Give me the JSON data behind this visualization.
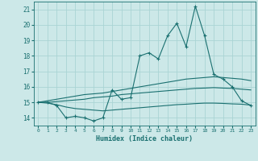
{
  "x": [
    0,
    1,
    2,
    3,
    4,
    5,
    6,
    7,
    8,
    9,
    10,
    11,
    12,
    13,
    14,
    15,
    16,
    17,
    18,
    19,
    20,
    21,
    22,
    23
  ],
  "line_main": [
    15.0,
    15.0,
    14.8,
    14.0,
    14.1,
    14.0,
    13.8,
    14.0,
    15.8,
    15.2,
    15.3,
    18.0,
    18.2,
    17.8,
    19.3,
    20.1,
    18.6,
    21.2,
    19.3,
    16.8,
    16.5,
    16.0,
    15.1,
    14.8
  ],
  "line_upper": [
    15.0,
    15.1,
    15.2,
    15.3,
    15.4,
    15.5,
    15.55,
    15.6,
    15.7,
    15.8,
    15.9,
    16.0,
    16.1,
    16.2,
    16.3,
    16.4,
    16.5,
    16.55,
    16.6,
    16.65,
    16.6,
    16.55,
    16.5,
    16.4
  ],
  "line_mid": [
    15.0,
    15.0,
    15.05,
    15.1,
    15.15,
    15.2,
    15.3,
    15.35,
    15.4,
    15.5,
    15.55,
    15.6,
    15.65,
    15.7,
    15.75,
    15.8,
    15.85,
    15.9,
    15.92,
    15.95,
    15.92,
    15.9,
    15.85,
    15.8
  ],
  "line_lower": [
    15.0,
    14.95,
    14.85,
    14.7,
    14.6,
    14.55,
    14.5,
    14.45,
    14.5,
    14.55,
    14.6,
    14.65,
    14.7,
    14.75,
    14.8,
    14.85,
    14.88,
    14.92,
    14.95,
    14.95,
    14.93,
    14.9,
    14.88,
    14.82
  ],
  "bg_color": "#cce8e8",
  "grid_color": "#aad4d4",
  "line_color": "#1a7070",
  "xlabel": "Humidex (Indice chaleur)",
  "ylim": [
    13.5,
    21.5
  ],
  "xlim": [
    -0.5,
    23.5
  ],
  "yticks": [
    14,
    15,
    16,
    17,
    18,
    19,
    20,
    21
  ],
  "xticks": [
    0,
    1,
    2,
    3,
    4,
    5,
    6,
    7,
    8,
    9,
    10,
    11,
    12,
    13,
    14,
    15,
    16,
    17,
    18,
    19,
    20,
    21,
    22,
    23
  ]
}
